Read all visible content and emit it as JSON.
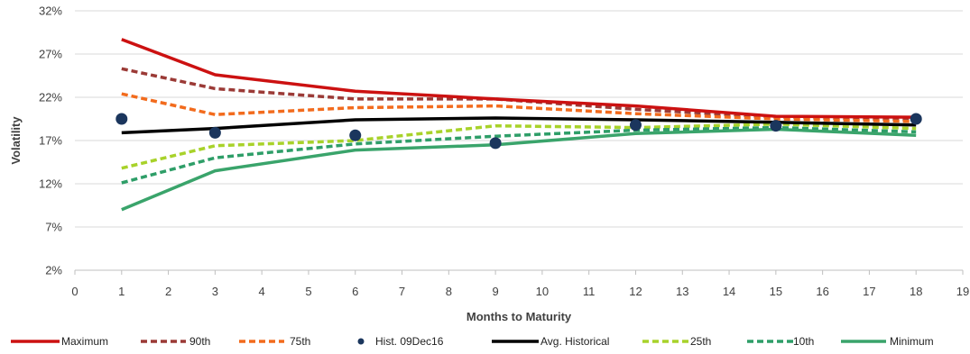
{
  "chart_data": {
    "type": "line",
    "xlabel": "Months to Maturity",
    "ylabel": "Volatility",
    "xlim": [
      0,
      19
    ],
    "ylim": [
      2,
      32
    ],
    "x_ticks": [
      0,
      1,
      2,
      3,
      4,
      5,
      6,
      7,
      8,
      9,
      10,
      11,
      12,
      13,
      14,
      15,
      16,
      17,
      18,
      19
    ],
    "y_ticks": [
      2,
      7,
      12,
      17,
      22,
      27,
      32
    ],
    "y_tick_labels": [
      "2%",
      "7%",
      "12%",
      "17%",
      "22%",
      "27%",
      "32%"
    ],
    "grid": "horizontal",
    "legend_position": "bottom",
    "x": [
      1,
      3,
      6,
      9,
      12,
      15,
      18
    ],
    "series": [
      {
        "name": "Maximum",
        "style": "solid",
        "color": "#cc1111",
        "marker": "none",
        "values": [
          28.7,
          24.6,
          22.7,
          21.8,
          21.0,
          19.8,
          19.7
        ]
      },
      {
        "name": "90th",
        "style": "dashed",
        "color": "#9b3a36",
        "marker": "none",
        "values": [
          25.3,
          23.0,
          21.8,
          21.8,
          20.6,
          19.7,
          19.4
        ]
      },
      {
        "name": "75th",
        "style": "dashed",
        "color": "#f26b1d",
        "marker": "none",
        "values": [
          22.4,
          20.0,
          20.8,
          21.0,
          20.1,
          19.5,
          19.2
        ]
      },
      {
        "name": "Hist. 09Dec16",
        "style": "markers",
        "color": "#1b365d",
        "marker": "circle",
        "values": [
          19.5,
          17.9,
          17.6,
          16.7,
          18.8,
          18.7,
          19.5
        ]
      },
      {
        "name": "Avg. Historical",
        "style": "solid",
        "color": "#000000",
        "marker": "none",
        "values": [
          17.9,
          18.4,
          19.4,
          19.6,
          19.4,
          19.1,
          18.8
        ]
      },
      {
        "name": "25th",
        "style": "dashed",
        "color": "#a8d22a",
        "marker": "none",
        "values": [
          13.8,
          16.4,
          17.0,
          18.7,
          18.5,
          18.9,
          18.4
        ]
      },
      {
        "name": "10th",
        "style": "dashed",
        "color": "#2e9e68",
        "marker": "none",
        "values": [
          12.1,
          15.0,
          16.6,
          17.5,
          18.2,
          18.5,
          18.0
        ]
      },
      {
        "name": "Minimum",
        "style": "solid",
        "color": "#3aa46b",
        "marker": "none",
        "values": [
          9.0,
          13.5,
          15.9,
          16.5,
          17.8,
          18.3,
          17.6
        ]
      }
    ]
  }
}
